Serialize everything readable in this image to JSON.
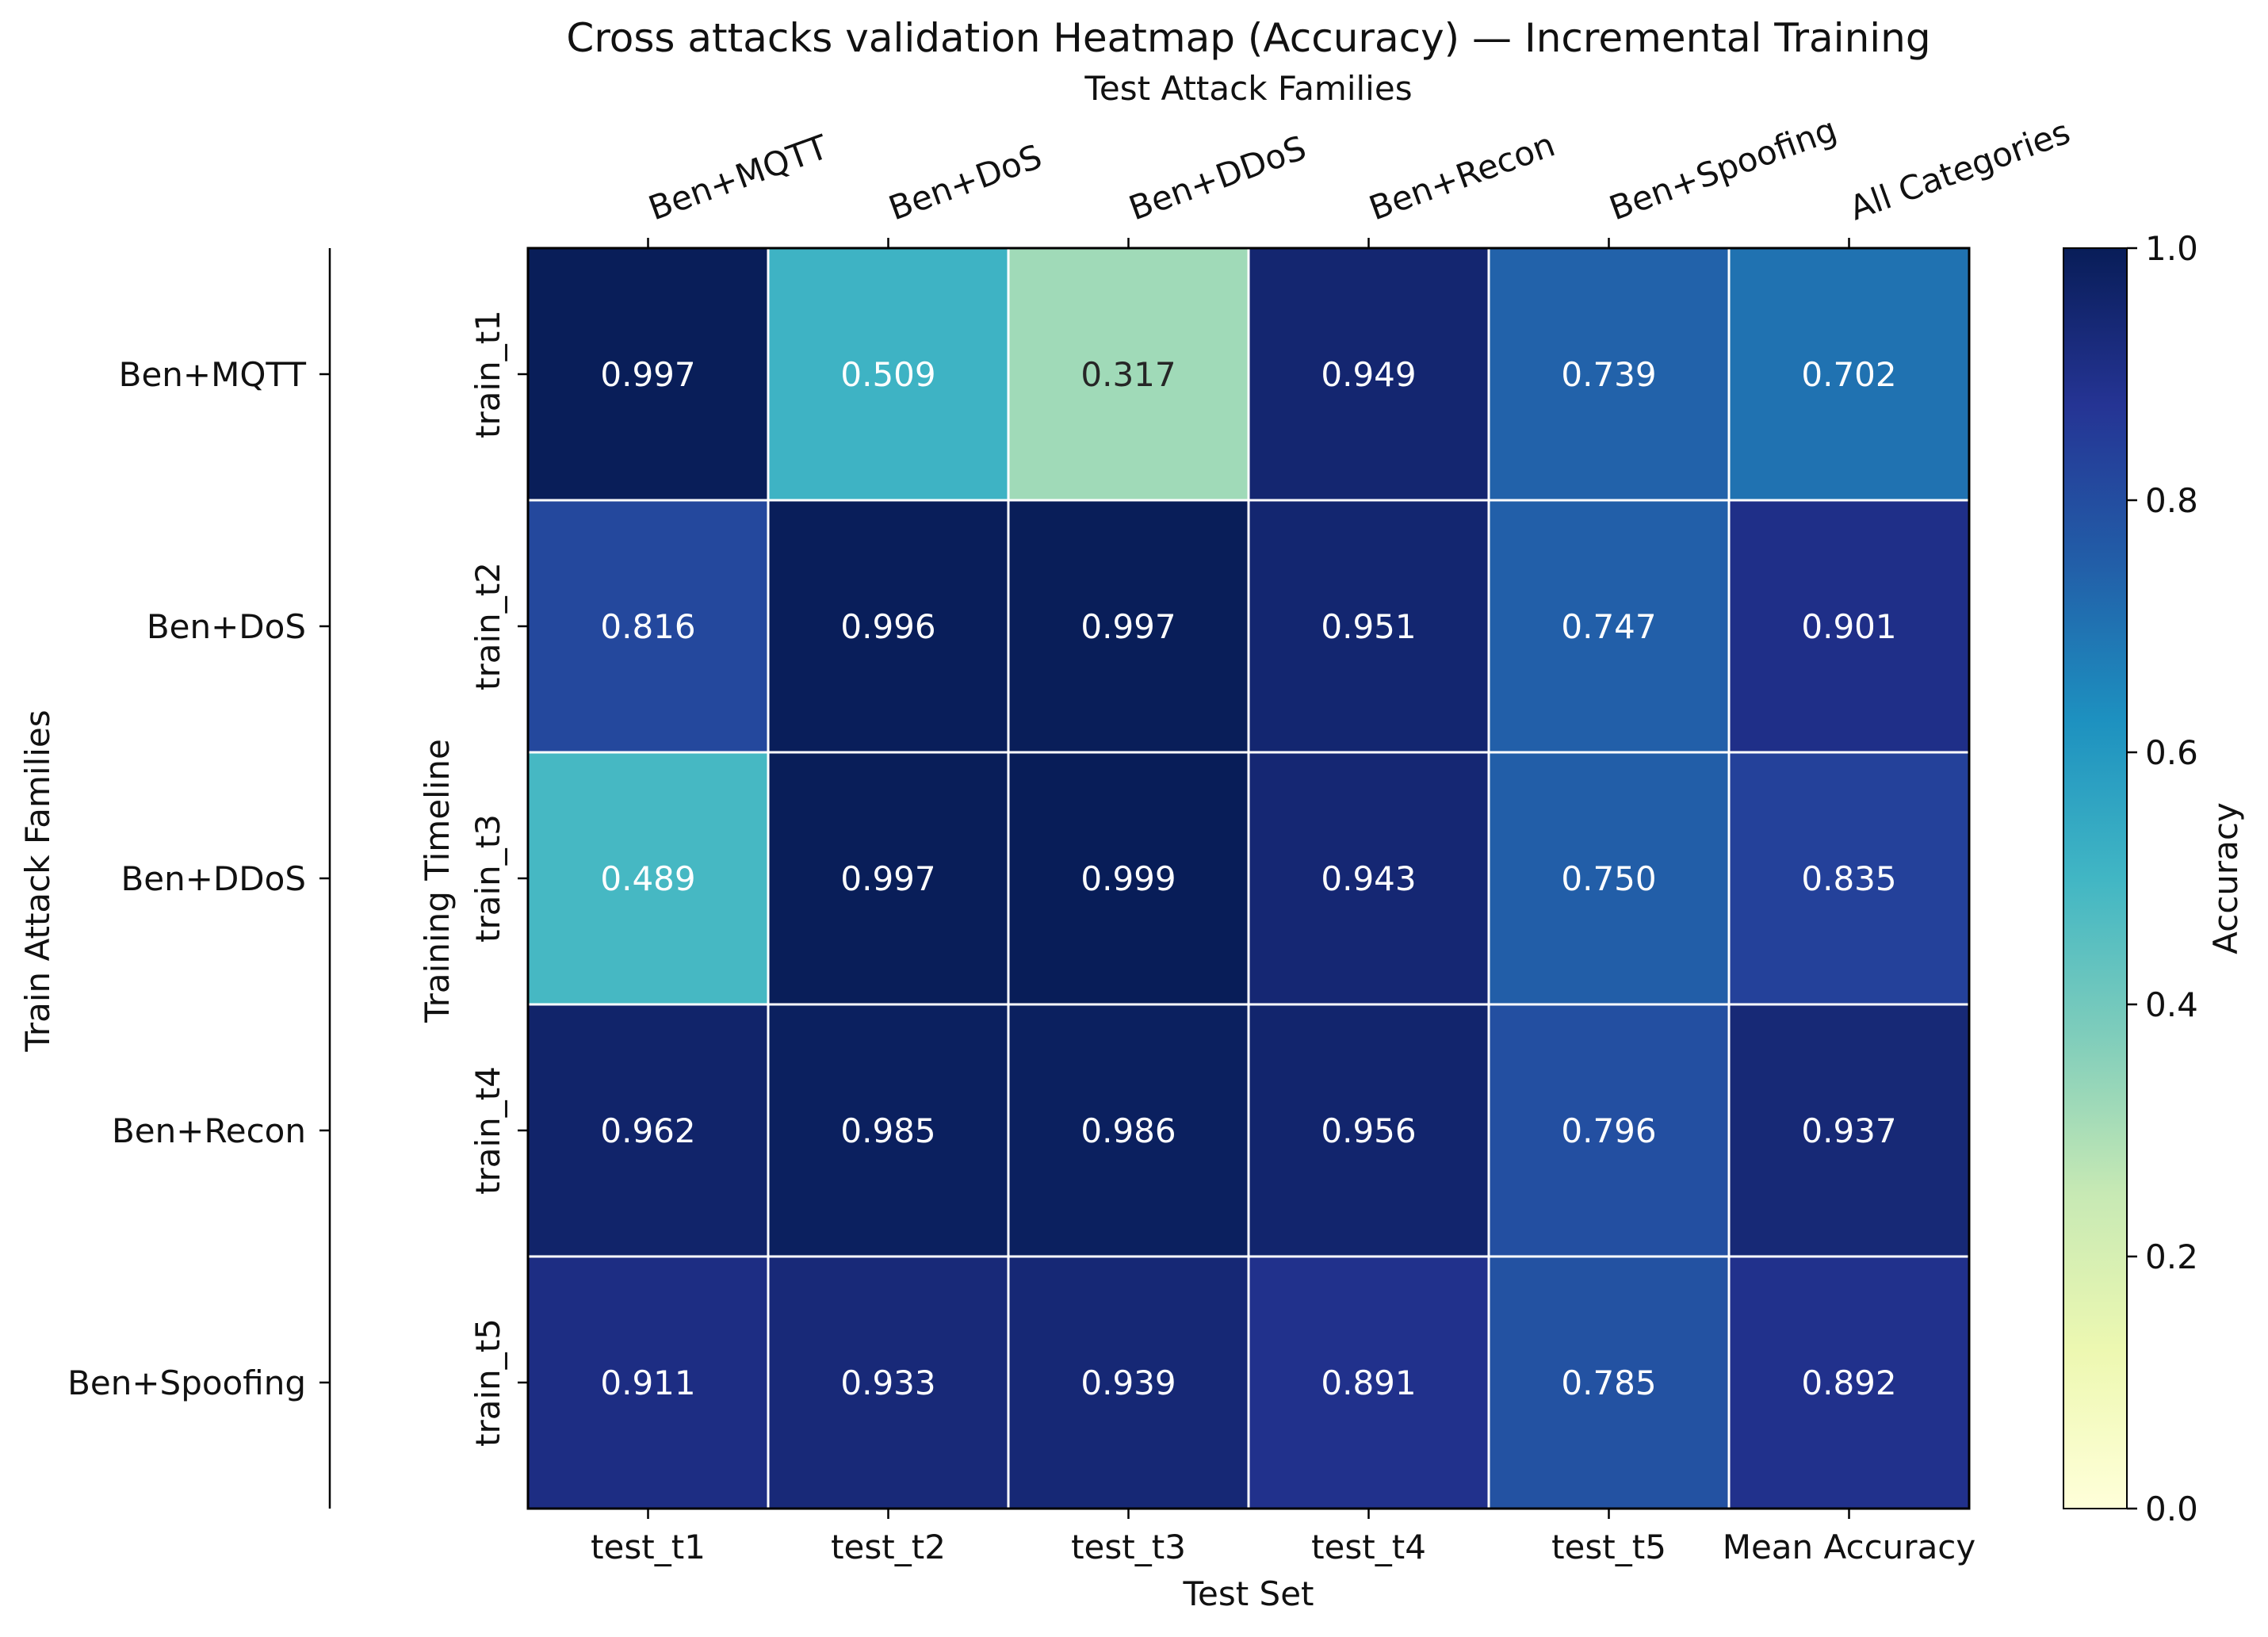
{
  "chart_data": {
    "type": "heatmap",
    "title": "Cross attacks validation Heatmap (Accuracy) — Incremental Training",
    "top_axis_title": "Test Attack Families",
    "top_tick_labels": [
      "Ben+MQTT",
      "Ben+DoS",
      "Ben+DDoS",
      "Ben+Recon",
      "Ben+Spoofing",
      "All Categories"
    ],
    "xlabel": "Test Set",
    "x_tick_labels": [
      "test_t1",
      "test_t2",
      "test_t3",
      "test_t4",
      "test_t5",
      "Mean Accuracy"
    ],
    "ylabel": "Training Timeline",
    "y_tick_labels": [
      "train_t1",
      "train_t2",
      "train_t3",
      "train_t4",
      "train_t5"
    ],
    "outer_ylabel": "Train Attack Families",
    "outer_y_tick_labels": [
      "Ben+MQTT",
      "Ben+DoS",
      "Ben+DDoS",
      "Ben+Recon",
      "Ben+Spoofing"
    ],
    "values": [
      [
        0.997,
        0.509,
        0.317,
        0.949,
        0.739,
        0.702
      ],
      [
        0.816,
        0.996,
        0.997,
        0.951,
        0.747,
        0.901
      ],
      [
        0.489,
        0.997,
        0.999,
        0.943,
        0.75,
        0.835
      ],
      [
        0.962,
        0.985,
        0.986,
        0.956,
        0.796,
        0.937
      ],
      [
        0.911,
        0.933,
        0.939,
        0.891,
        0.785,
        0.892
      ]
    ],
    "value_labels": [
      [
        "0.997",
        "0.509",
        "0.317",
        "0.949",
        "0.739",
        "0.702"
      ],
      [
        "0.816",
        "0.996",
        "0.997",
        "0.951",
        "0.747",
        "0.901"
      ],
      [
        "0.489",
        "0.997",
        "0.999",
        "0.943",
        "0.750",
        "0.835"
      ],
      [
        "0.962",
        "0.985",
        "0.986",
        "0.956",
        "0.796",
        "0.937"
      ],
      [
        "0.911",
        "0.933",
        "0.939",
        "0.891",
        "0.785",
        "0.892"
      ]
    ],
    "colorbar": {
      "label": "Accuracy",
      "range": [
        0.0,
        1.0
      ],
      "ticks": [
        0.0,
        0.2,
        0.4,
        0.6,
        0.8,
        1.0
      ],
      "tick_labels": [
        "0.0",
        "0.2",
        "0.4",
        "0.6",
        "0.8",
        "1.0"
      ],
      "colormap": "YlGnBu",
      "stops": [
        "#ffffd9",
        "#edf8b1",
        "#c7e9b4",
        "#7fcdbb",
        "#41b6c4",
        "#1d91c0",
        "#225ea8",
        "#253494",
        "#081d58"
      ]
    },
    "text_colors": {
      "dark_cell": "#ffffff",
      "light_cell": "#262626"
    },
    "grid_color": "#ffffff"
  }
}
